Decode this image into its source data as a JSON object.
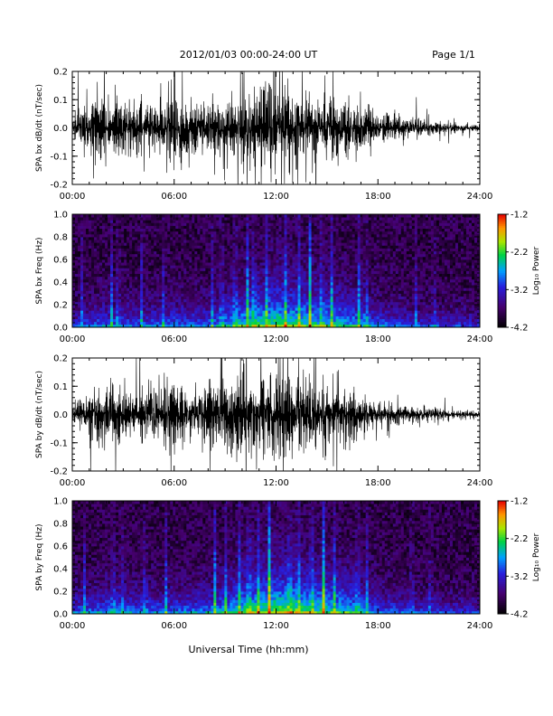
{
  "header": {
    "title": "2012/01/03  00:00-24:00 UT",
    "page": "Page 1/1"
  },
  "xlabel": "Universal Time (hh:mm)",
  "colors": {
    "trace": "#000000",
    "background": "#ffffff"
  },
  "chart_data": [
    {
      "type": "line",
      "name": "bx-waveform",
      "ylabel": "SPA bx dB/dt (nT/sec)",
      "xlim_hours": [
        0,
        24
      ],
      "ylim": [
        -0.2,
        0.2
      ],
      "xticks": [
        "00:00",
        "06:00",
        "12:00",
        "18:00",
        "24:00"
      ],
      "yticks": [
        "-0.2",
        "-0.1",
        "0.0",
        "0.1",
        "0.2"
      ],
      "envelope_hours": [
        0,
        1,
        2,
        3,
        4,
        5,
        6,
        7,
        8,
        9,
        10,
        11,
        12,
        13,
        14,
        15,
        16,
        17,
        18,
        19,
        20,
        21,
        22,
        23,
        24
      ],
      "envelope_amplitude": [
        0.09,
        0.12,
        0.2,
        0.15,
        0.13,
        0.16,
        0.2,
        0.14,
        0.14,
        0.17,
        0.2,
        0.22,
        0.22,
        0.2,
        0.17,
        0.15,
        0.14,
        0.12,
        0.08,
        0.06,
        0.05,
        0.04,
        0.03,
        0.02,
        0.02
      ]
    },
    {
      "type": "heatmap",
      "name": "bx-spectrogram",
      "ylabel": "SPA bx Freq (Hz)",
      "xlim_hours": [
        0,
        24
      ],
      "ylim": [
        0.0,
        1.0
      ],
      "xticks": [
        "00:00",
        "06:00",
        "12:00",
        "18:00",
        "24:00"
      ],
      "yticks": [
        "0.0",
        "0.2",
        "0.4",
        "0.6",
        "0.8",
        "1.0"
      ],
      "colorbar": {
        "label": "Log₁₀ Power",
        "range": [
          -4.2,
          -1.2
        ],
        "ticks": [
          "-1.2",
          "-2.2",
          "-3.2",
          "-4.2"
        ]
      },
      "activity_hours": [
        0,
        2,
        4,
        6,
        8,
        10,
        12,
        14,
        16,
        18,
        20,
        22,
        24
      ],
      "activity_level": [
        0.45,
        0.55,
        0.5,
        0.55,
        0.55,
        0.8,
        0.95,
        0.85,
        0.75,
        0.55,
        0.45,
        0.4,
        0.4
      ],
      "burst_hours": [
        0.6,
        2.3,
        2.7,
        4.1,
        5.4,
        8.2,
        8.8,
        9.6,
        10.3,
        10.7,
        11.4,
        12.6,
        13.4,
        14.0,
        14.7,
        15.3,
        16.9,
        17.3,
        20.2,
        21.3
      ]
    },
    {
      "type": "line",
      "name": "by-waveform",
      "ylabel": "SPA by dB/dt (nT/sec)",
      "xlim_hours": [
        0,
        24
      ],
      "ylim": [
        -0.2,
        0.2
      ],
      "xticks": [
        "00:00",
        "06:00",
        "12:00",
        "18:00",
        "24:00"
      ],
      "yticks": [
        "-0.2",
        "-0.1",
        "0.0",
        "0.1",
        "0.2"
      ],
      "envelope_hours": [
        0,
        1,
        2,
        3,
        4,
        5,
        6,
        7,
        8,
        9,
        10,
        11,
        12,
        13,
        14,
        15,
        16,
        17,
        18,
        19,
        20,
        21,
        22,
        23,
        24
      ],
      "envelope_amplitude": [
        0.07,
        0.1,
        0.17,
        0.15,
        0.14,
        0.16,
        0.18,
        0.12,
        0.16,
        0.2,
        0.22,
        0.22,
        0.22,
        0.2,
        0.16,
        0.14,
        0.14,
        0.1,
        0.07,
        0.06,
        0.05,
        0.04,
        0.03,
        0.02,
        0.02
      ]
    },
    {
      "type": "heatmap",
      "name": "by-spectrogram",
      "ylabel": "SPA by Freq (Hz)",
      "xlim_hours": [
        0,
        24
      ],
      "ylim": [
        0.0,
        1.0
      ],
      "xticks": [
        "00:00",
        "06:00",
        "12:00",
        "18:00",
        "24:00"
      ],
      "yticks": [
        "0.0",
        "0.2",
        "0.4",
        "0.6",
        "0.8",
        "1.0"
      ],
      "colorbar": {
        "label": "Log₁₀ Power",
        "range": [
          -4.2,
          -1.2
        ],
        "ticks": [
          "-1.2",
          "-2.2",
          "-3.2",
          "-4.2"
        ]
      },
      "activity_hours": [
        0,
        2,
        4,
        6,
        8,
        10,
        12,
        14,
        16,
        18,
        20,
        22,
        24
      ],
      "activity_level": [
        0.5,
        0.6,
        0.55,
        0.55,
        0.6,
        0.85,
        1.0,
        0.9,
        0.8,
        0.55,
        0.45,
        0.4,
        0.4
      ],
      "burst_hours": [
        0.7,
        2.4,
        2.9,
        4.3,
        5.5,
        8.4,
        9.0,
        9.8,
        10.4,
        11.0,
        11.6,
        12.8,
        13.3,
        14.1,
        14.8,
        15.4,
        16.8,
        17.4,
        20.0,
        21.1
      ]
    }
  ]
}
